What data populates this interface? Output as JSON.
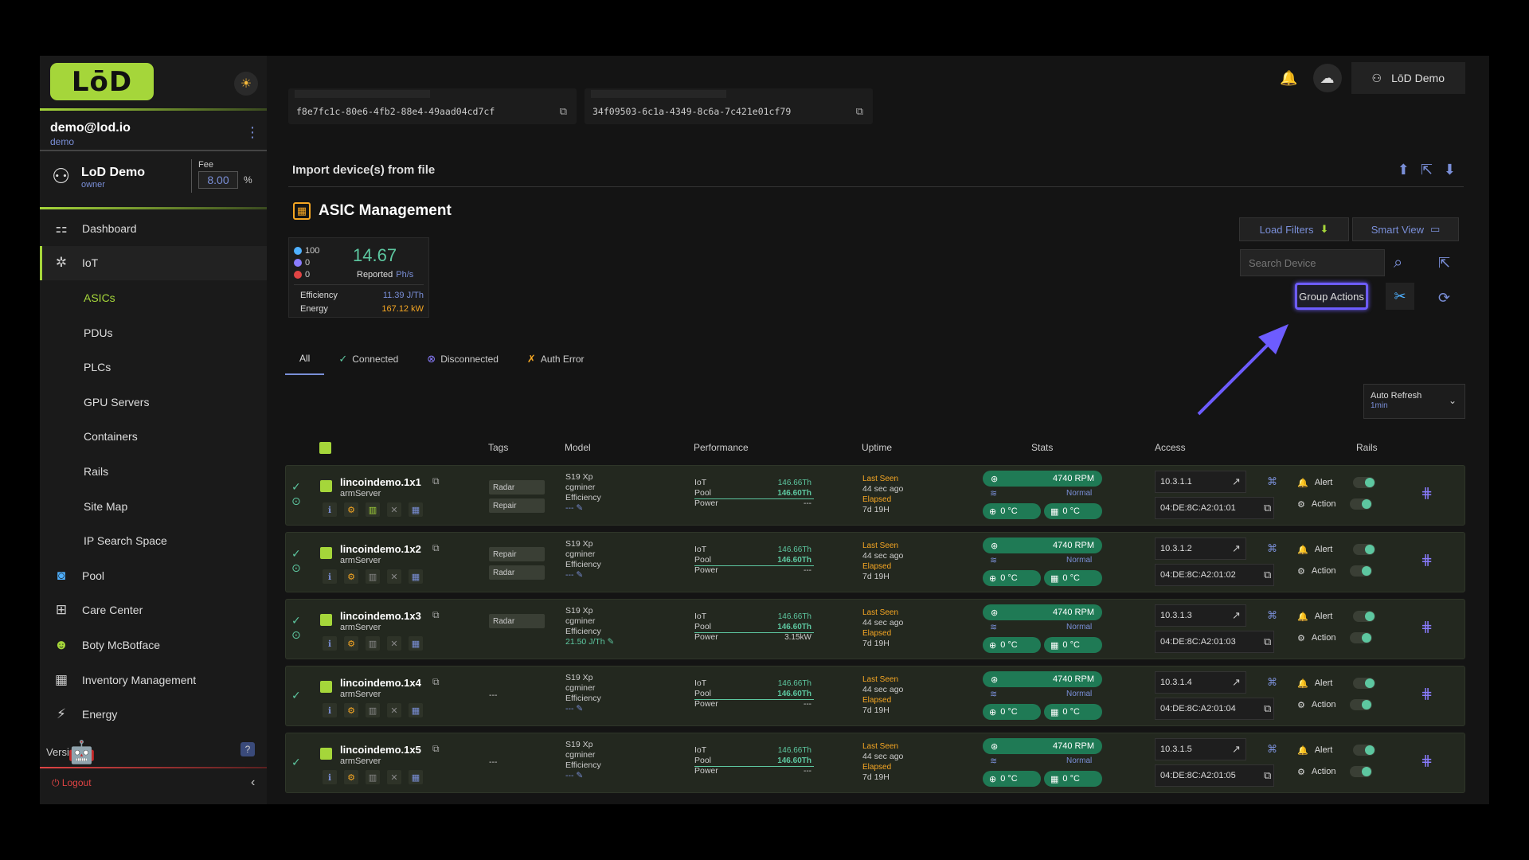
{
  "brand": {
    "logo": "LōD"
  },
  "user": {
    "email": "demo@lod.io",
    "role": "demo"
  },
  "org": {
    "name": "LoD Demo",
    "role": "owner",
    "fee_label": "Fee",
    "fee_value": "8.00",
    "fee_unit": "%"
  },
  "nav": {
    "dashboard": "Dashboard",
    "iot": "IoT",
    "asics": "ASICs",
    "pdus": "PDUs",
    "plcs": "PLCs",
    "gpu": "GPU Servers",
    "containers": "Containers",
    "rails": "Rails",
    "sitemap": "Site Map",
    "ipsearch": "IP Search Space",
    "pool": "Pool",
    "care": "Care Center",
    "boty": "Boty McBotface",
    "inventory": "Inventory Management",
    "energy": "Energy"
  },
  "footer": {
    "version": "Versi.0",
    "logout": "Logout"
  },
  "topbar": {
    "user": "LōD Demo"
  },
  "uuids": [
    "f8e7fc1c-80e6-4fb2-88e4-49aad04cd7cf",
    "34f09503-6c1a-4349-8c6a-7c421e01cf79"
  ],
  "import": {
    "title": "Import device(s) from file"
  },
  "asic": {
    "title": "ASIC Management",
    "summary": {
      "connected": "100",
      "disconnected": "0",
      "errors": "0",
      "hashrate": "14.67",
      "reported_label": "Reported",
      "unit": "Ph/s",
      "efficiency_label": "Efficiency",
      "efficiency_value": "11.39 J/Th",
      "energy_label": "Energy",
      "energy_value": "167.12 kW"
    },
    "load_filters": "Load Filters",
    "smart_view": "Smart View",
    "search_placeholder": "Search Device",
    "group_actions": "Group Actions",
    "tabs": {
      "all": "All",
      "connected": "Connected",
      "disconnected": "Disconnected",
      "auth": "Auth Error"
    },
    "auto_refresh": {
      "label": "Auto Refresh",
      "value": "1min"
    }
  },
  "table": {
    "headers": {
      "tags": "Tags",
      "model": "Model",
      "performance": "Performance",
      "uptime": "Uptime",
      "stats": "Stats",
      "access": "Access",
      "rails": "Rails"
    },
    "labels": {
      "iot": "IoT",
      "pool": "Pool",
      "power": "Power",
      "efficiency": "Efficiency",
      "last_seen": "Last Seen",
      "elapsed": "Elapsed",
      "normal": "Normal",
      "alert": "Alert",
      "action": "Action",
      "dash": "---"
    },
    "rows": [
      {
        "name": "lincoindemo.1x1",
        "server": "armServer",
        "tags": [
          "Radar",
          "Repair"
        ],
        "model": "S19 Xp",
        "miner": "cgminer",
        "eff": "---",
        "iot": "146.66Th",
        "pool": "146.60Th",
        "power": "---",
        "seen": "44 sec ago",
        "elapsed": "7d 19H",
        "rpm": "4740 RPM",
        "t1": "0 °C",
        "t2": "0 °C",
        "ip": "10.3.1.1",
        "mac": "04:DE:8C:A2:01:01"
      },
      {
        "name": "lincoindemo.1x2",
        "server": "armServer",
        "tags": [
          "Repair",
          "Radar"
        ],
        "model": "S19 Xp",
        "miner": "cgminer",
        "eff": "---",
        "iot": "146.66Th",
        "pool": "146.60Th",
        "power": "---",
        "seen": "44 sec ago",
        "elapsed": "7d 19H",
        "rpm": "4740 RPM",
        "t1": "0 °C",
        "t2": "0 °C",
        "ip": "10.3.1.2",
        "mac": "04:DE:8C:A2:01:02"
      },
      {
        "name": "lincoindemo.1x3",
        "server": "armServer",
        "tags": [
          "Radar"
        ],
        "model": "S19 Xp",
        "miner": "cgminer",
        "eff": "21.50 J/Th",
        "iot": "146.66Th",
        "pool": "146.60Th",
        "power": "3.15kW",
        "seen": "44 sec ago",
        "elapsed": "7d 19H",
        "rpm": "4740 RPM",
        "t1": "0 °C",
        "t2": "0 °C",
        "ip": "10.3.1.3",
        "mac": "04:DE:8C:A2:01:03"
      },
      {
        "name": "lincoindemo.1x4",
        "server": "armServer",
        "tags": [],
        "model": "S19 Xp",
        "miner": "cgminer",
        "eff": "---",
        "iot": "146.66Th",
        "pool": "146.60Th",
        "power": "---",
        "seen": "44 sec ago",
        "elapsed": "7d 19H",
        "rpm": "4740 RPM",
        "t1": "0 °C",
        "t2": "0 °C",
        "ip": "10.3.1.4",
        "mac": "04:DE:8C:A2:01:04"
      },
      {
        "name": "lincoindemo.1x5",
        "server": "armServer",
        "tags": [],
        "model": "S19 Xp",
        "miner": "cgminer",
        "eff": "---",
        "iot": "146.66Th",
        "pool": "146.60Th",
        "power": "---",
        "seen": "44 sec ago",
        "elapsed": "7d 19H",
        "rpm": "4740 RPM",
        "t1": "0 °C",
        "t2": "0 °C",
        "ip": "10.3.1.5",
        "mac": "04:DE:8C:A2:01:05"
      }
    ]
  },
  "colors": {
    "accent": "#a5d63a",
    "highlight": "#6d5cff",
    "link": "#7a8fd8",
    "ok": "#5dc7a0",
    "warn": "#f5a623"
  },
  "icons": {
    "theme": "sun-icon",
    "bell": "bell-icon",
    "cloud": "cloud-upload-icon",
    "search": "search-icon"
  }
}
